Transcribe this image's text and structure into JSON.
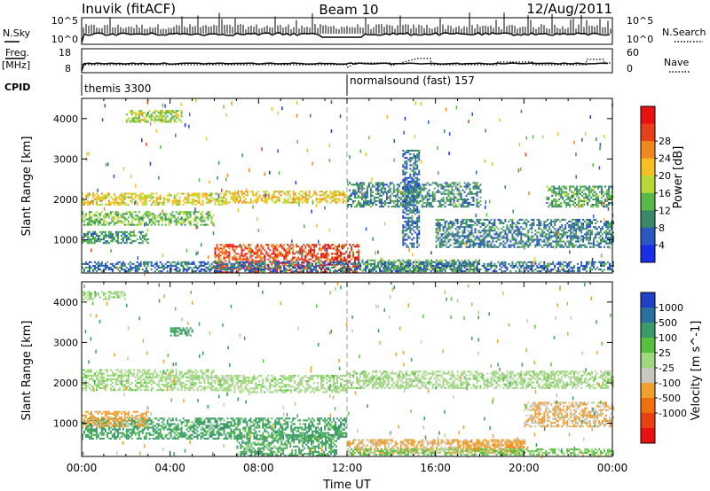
{
  "header": {
    "station": "Inuvik (fitACF)",
    "beam": "Beam 10",
    "date": "12/Aug/2011"
  },
  "top_panels": {
    "nsky_label": "N.Sky",
    "nsky_ticks": [
      "10^5",
      "10^0"
    ],
    "nsearch_label": "N.Search",
    "nsearch_ticks": [
      "10^5",
      "10^0"
    ],
    "freq_label_top": "Freq.",
    "freq_label_unit": "[MHz]",
    "freq_ticks": [
      "18",
      "8"
    ],
    "nave_label": "Nave",
    "nave_ticks": [
      "60",
      "0"
    ],
    "cpid_label": "CPID",
    "cpid_segments": [
      {
        "name": "themis 3300",
        "start_hour": 0
      },
      {
        "name": "normalsound (fast) 157",
        "start_hour": 12
      }
    ]
  },
  "chart_data": [
    {
      "type": "heatmap",
      "name": "power",
      "xlabel": "",
      "ylabel": "Slant Range [km]",
      "xlim": [
        0,
        24
      ],
      "ylim": [
        180,
        4500
      ],
      "x_tick_labels": [
        "00:00",
        "04:00",
        "08:00",
        "12:00",
        "16:00",
        "20:00",
        "00:00"
      ],
      "y_ticks": [
        1000,
        2000,
        3000,
        4000
      ],
      "colorbar": {
        "label": "Power [dB]",
        "ticks": [
          "4",
          "8",
          "12",
          "16",
          "20",
          "24",
          "28"
        ],
        "colors": [
          "#1a2ee8",
          "#2a58c0",
          "#3a8a6a",
          "#58b848",
          "#b8d838",
          "#f5c020",
          "#f08820",
          "#e84018",
          "#e81010"
        ]
      },
      "regions": [
        {
          "t": [
            6.0,
            12.5
          ],
          "r": [
            180,
            900
          ],
          "v": 29
        },
        {
          "t": [
            12.5,
            18.0
          ],
          "r": [
            200,
            500
          ],
          "v": 14
        },
        {
          "t": [
            0.0,
            6.5
          ],
          "r": [
            1850,
            2150
          ],
          "v": 20
        },
        {
          "t": [
            0.0,
            6.0
          ],
          "r": [
            1350,
            1700
          ],
          "v": 15
        },
        {
          "t": [
            2.0,
            4.5
          ],
          "r": [
            3900,
            4200
          ],
          "v": 17
        },
        {
          "t": [
            6.5,
            12.0
          ],
          "r": [
            1900,
            2200
          ],
          "v": 21
        },
        {
          "t": [
            12.0,
            18.0
          ],
          "r": [
            1800,
            2400
          ],
          "v": 11
        },
        {
          "t": [
            16.0,
            24.0
          ],
          "r": [
            800,
            1500
          ],
          "v": 10
        },
        {
          "t": [
            21.0,
            24.0
          ],
          "r": [
            1800,
            2300
          ],
          "v": 13
        },
        {
          "t": [
            0.0,
            24.0
          ],
          "r": [
            200,
            450
          ],
          "v": 9
        },
        {
          "t": [
            0.0,
            3.0
          ],
          "r": [
            900,
            1200
          ],
          "v": 12
        },
        {
          "t": [
            14.5,
            15.3
          ],
          "r": [
            800,
            3200
          ],
          "v": 9
        }
      ]
    },
    {
      "type": "heatmap",
      "name": "velocity",
      "xlabel": "Time UT",
      "ylabel": "Slant Range [km]",
      "xlim": [
        0,
        24
      ],
      "ylim": [
        180,
        4500
      ],
      "x_tick_labels": [
        "00:00",
        "04:00",
        "08:00",
        "12:00",
        "16:00",
        "20:00",
        "00:00"
      ],
      "y_ticks": [
        1000,
        2000,
        3000,
        4000
      ],
      "colorbar": {
        "label": "Velocity [m s^-1]",
        "ticks": [
          "1000",
          "500",
          "100",
          "25",
          "-25",
          "-100",
          "-500",
          "-1000"
        ],
        "colors": [
          "#2040c8",
          "#2a70a0",
          "#3a9a68",
          "#58c040",
          "#a0d880",
          "#c8c8c0",
          "#f0a030",
          "#f07010",
          "#e84010",
          "#e81010"
        ]
      },
      "regions": [
        {
          "t": [
            0.0,
            6.0
          ],
          "r": [
            1800,
            2300
          ],
          "v": 0
        },
        {
          "t": [
            6.0,
            12.0
          ],
          "r": [
            1750,
            2200
          ],
          "v": 0
        },
        {
          "t": [
            12.0,
            24.0
          ],
          "r": [
            1850,
            2300
          ],
          "v": 0
        },
        {
          "t": [
            0.0,
            12.0
          ],
          "r": [
            600,
            1100
          ],
          "v": 200
        },
        {
          "t": [
            7.0,
            11.5
          ],
          "r": [
            180,
            700
          ],
          "v": 150
        },
        {
          "t": [
            0.0,
            3.0
          ],
          "r": [
            900,
            1300
          ],
          "v": -200
        },
        {
          "t": [
            12.0,
            20.0
          ],
          "r": [
            250,
            600
          ],
          "v": -150
        },
        {
          "t": [
            17.0,
            20.0
          ],
          "r": [
            300,
            550
          ],
          "v": -300
        },
        {
          "t": [
            0.0,
            2.0
          ],
          "r": [
            4050,
            4250
          ],
          "v": 0
        },
        {
          "t": [
            4.0,
            5.0
          ],
          "r": [
            3150,
            3350
          ],
          "v": 200
        },
        {
          "t": [
            20.0,
            24.0
          ],
          "r": [
            900,
            1500
          ],
          "v": -100
        },
        {
          "t": [
            12.0,
            24.0
          ],
          "r": [
            200,
            380
          ],
          "v": 30
        }
      ]
    }
  ]
}
